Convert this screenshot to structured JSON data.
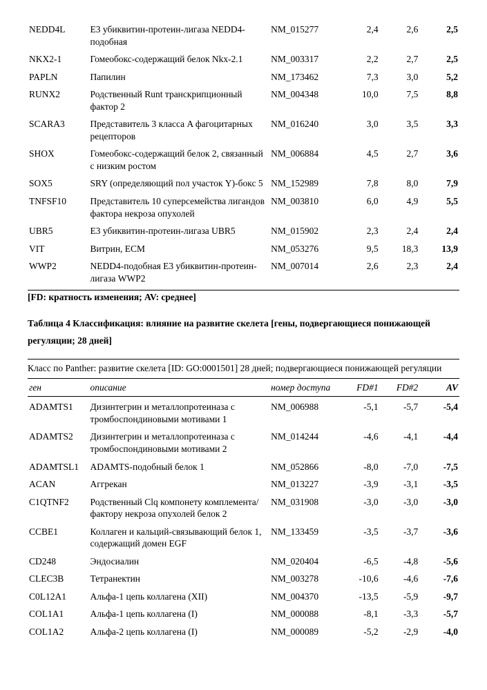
{
  "table1": {
    "rows": [
      {
        "gene": "NEDD4L",
        "desc": "E3 убиквитин-протеин-лигаза NEDD4-подобная",
        "acc": "NM_015277",
        "fd1": "2,4",
        "fd2": "2,6",
        "av": "2,5"
      },
      {
        "gene": "NKX2-1",
        "desc": "Гомеобокс-содержащий белок Nkx-2.1",
        "acc": "NM_003317",
        "fd1": "2,2",
        "fd2": "2,7",
        "av": "2,5"
      },
      {
        "gene": "PAPLN",
        "desc": "Папилин",
        "acc": "NM_173462",
        "fd1": "7,3",
        "fd2": "3,0",
        "av": "5,2"
      },
      {
        "gene": "RUNX2",
        "desc": "Родственный Runt транскрипционный фактор 2",
        "acc": "NM_004348",
        "fd1": "10,0",
        "fd2": "7,5",
        "av": "8,8"
      },
      {
        "gene": "SCARA3",
        "desc": "Представитель 3 класса A фагоцитарных рецепторов",
        "acc": "NM_016240",
        "fd1": "3,0",
        "fd2": "3,5",
        "av": "3,3"
      },
      {
        "gene": "SHOX",
        "desc": "Гомеобокс-содержащий белок 2, связанный с низким ростом",
        "acc": "NM_006884",
        "fd1": "4,5",
        "fd2": "2,7",
        "av": "3,6"
      },
      {
        "gene": "SOX5",
        "desc": "SRY (определяющий пол участок Y)-бокс 5",
        "acc": "NM_152989",
        "fd1": "7,8",
        "fd2": "8,0",
        "av": "7,9"
      },
      {
        "gene": "TNFSF10",
        "desc": "Представитель 10 суперсемейства лигандов фактора некроза опухолей",
        "acc": "NM_003810",
        "fd1": "6,0",
        "fd2": "4,9",
        "av": "5,5"
      },
      {
        "gene": "UBR5",
        "desc": "E3 убиквитин-протеин-лигаза UBR5",
        "acc": "NM_015902",
        "fd1": "2,3",
        "fd2": "2,4",
        "av": "2,4"
      },
      {
        "gene": "VIT",
        "desc": "Витрин, ECM",
        "acc": "NM_053276",
        "fd1": "9,5",
        "fd2": "18,3",
        "av": "13,9"
      },
      {
        "gene": "WWP2",
        "desc": "NEDD4-подобная E3 убиквитин-протеин-лигаза WWP2",
        "acc": "NM_007014",
        "fd1": "2,6",
        "fd2": "2,3",
        "av": "2,4"
      }
    ]
  },
  "note_text": "[FD: кратность изменения; AV: среднее]",
  "title4_a": "Таблица 4 Классификация: влияние на развитие скелета [гены, подвергающиеся понижающей регуляции; 28 дней]",
  "panther_text": "Класс по Panther: развитие скелета [ID: GO:0001501] 28 дней; подвергающиеся понижающей регуляции",
  "headers": {
    "gene": "ген",
    "desc": "описание",
    "acc": "номер доступа",
    "fd1": "FD#1",
    "fd2": "FD#2",
    "av": "AV"
  },
  "table2": {
    "rows": [
      {
        "gene": "ADAMTS1",
        "desc": "Дизинтегрин и металлопротеиназа с тромбоспондиновыми мотивами 1",
        "acc": "NM_006988",
        "fd1": "-5,1",
        "fd2": "-5,7",
        "av": "-5,4"
      },
      {
        "gene": "ADAMTS2",
        "desc": "Дизинтегрин и металлопротеиназа с тромбоспондиновыми мотивами 2",
        "acc": "NM_014244",
        "fd1": "-4,6",
        "fd2": "-4,1",
        "av": "-4,4"
      },
      {
        "gene": "ADAMTSL1",
        "desc": "ADAMTS-подобный белок 1",
        "acc": "NM_052866",
        "fd1": "-8,0",
        "fd2": "-7,0",
        "av": "-7,5"
      },
      {
        "gene": "ACAN",
        "desc": "Аггрекан",
        "acc": "NM_013227",
        "fd1": "-3,9",
        "fd2": "-3,1",
        "av": "-3,5"
      },
      {
        "gene": "C1QTNF2",
        "desc": "Родственный Clq компонету комплемента/фактору некроза опухолей белок 2",
        "acc": "NM_031908",
        "fd1": "-3,0",
        "fd2": "-3,0",
        "av": "-3,0"
      },
      {
        "gene": "CCBE1",
        "desc": "Коллаген и кальций-связывающий белок 1, содержащий домен EGF",
        "acc": "NM_133459",
        "fd1": "-3,5",
        "fd2": "-3,7",
        "av": "-3,6"
      },
      {
        "gene": "CD248",
        "desc": "Эндосиалин",
        "acc": "NM_020404",
        "fd1": "-6,5",
        "fd2": "-4,8",
        "av": "-5,6"
      },
      {
        "gene": "CLEC3B",
        "desc": "Тетранектин",
        "acc": "NM_003278",
        "fd1": "-10,6",
        "fd2": "-4,6",
        "av": "-7,6"
      },
      {
        "gene": "C0L12A1",
        "desc": "Альфа-1 цепь коллагена (XII)",
        "acc": "NM_004370",
        "fd1": "-13,5",
        "fd2": "-5,9",
        "av": "-9,7"
      },
      {
        "gene": "COL1A1",
        "desc": "Альфа-1 цепь коллагена (I)",
        "acc": "NM_000088",
        "fd1": "-8,1",
        "fd2": "-3,3",
        "av": "-5,7"
      },
      {
        "gene": "COL1A2",
        "desc": "Альфа-2 цепь коллагена (I)",
        "acc": "NM_000089",
        "fd1": "-5,2",
        "fd2": "-2,9",
        "av": "-4,0"
      }
    ]
  }
}
